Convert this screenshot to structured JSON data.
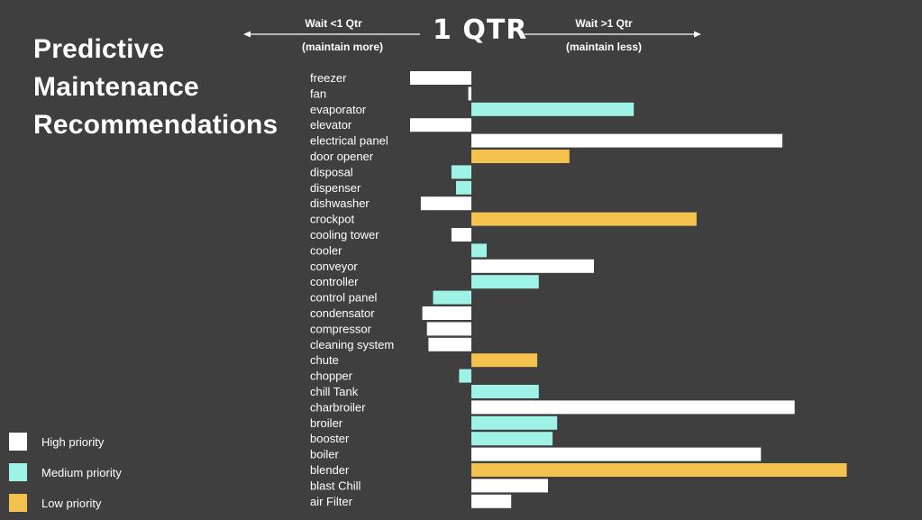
{
  "title_lines": [
    "Predictive",
    "Maintenance",
    "Recommendations"
  ],
  "header": {
    "left_top": "Wait <1 Qtr",
    "left_bottom": "(maintain more)",
    "center": "1 QTR",
    "right_top": "Wait >1 Qtr",
    "right_bottom": "(maintain less)"
  },
  "legend": [
    {
      "label": "High priority",
      "color": "#ffffff"
    },
    {
      "label": "Medium priority",
      "color": "#9ef2e6"
    },
    {
      "label": "Low priority",
      "color": "#f2c14e"
    }
  ],
  "colors": {
    "High": "#ffffff",
    "Medium": "#9ef2e6",
    "Low": "#f2c14e",
    "background": "#3f3f3f"
  },
  "chart_data": {
    "type": "bar",
    "orientation": "horizontal",
    "baseline_label": "1 QTR",
    "xlim": [
      -4,
      24
    ],
    "categories": [
      "freezer",
      "fan",
      "evaporator",
      "elevator",
      "electrical panel",
      "door opener",
      "disposal",
      "dispenser",
      "dishwasher",
      "crockpot",
      "cooling tower",
      "cooler",
      "conveyor",
      "controller",
      "control panel",
      "condensator",
      "compressor",
      "cleaning system",
      "chute",
      "chopper",
      "chill Tank",
      "charbroiler",
      "broiler",
      "booster",
      "boiler",
      "blender",
      "blast Chill",
      "air Filter"
    ],
    "values": [
      -4.0,
      -0.2,
      10.6,
      -4.0,
      20.3,
      6.4,
      -1.3,
      -1.0,
      -3.3,
      14.7,
      -1.3,
      1.0,
      8.0,
      4.4,
      -2.5,
      -3.2,
      -2.9,
      -2.8,
      4.3,
      -0.8,
      4.4,
      21.1,
      5.6,
      5.3,
      18.9,
      24.5,
      5.0,
      2.6
    ],
    "priority": [
      "High",
      "High",
      "Medium",
      "High",
      "High",
      "Low",
      "Medium",
      "Medium",
      "High",
      "Low",
      "High",
      "Medium",
      "High",
      "Medium",
      "Medium",
      "High",
      "High",
      "High",
      "Low",
      "Medium",
      "Medium",
      "High",
      "Medium",
      "Medium",
      "High",
      "Low",
      "High",
      "High"
    ]
  }
}
